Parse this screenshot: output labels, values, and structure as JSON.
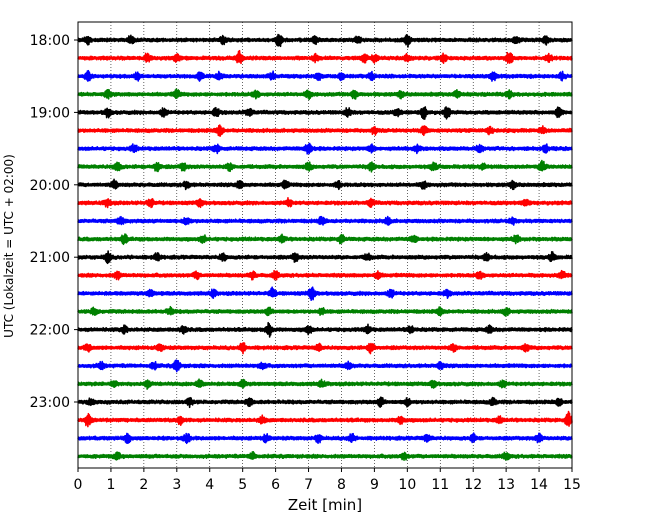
{
  "chart_data": {
    "type": "line",
    "title": "",
    "xlabel": "Zeit  [min]",
    "ylabel": "UTC (Lokalzeit = UTC + 02:00)",
    "xlim": [
      0,
      15
    ],
    "xticks": [
      "0",
      "1",
      "2",
      "3",
      "4",
      "5",
      "6",
      "7",
      "8",
      "9",
      "10",
      "11",
      "12",
      "13",
      "14",
      "15"
    ],
    "ytick_labels": [
      "18:00",
      "19:00",
      "20:00",
      "21:00",
      "22:00",
      "23:00"
    ],
    "grid": "vertical dotted",
    "trace_interval_min": 15,
    "color_cycle": [
      "#000000",
      "#ff0000",
      "#0000ff",
      "#008000"
    ],
    "traces": [
      {
        "start": "18:00",
        "events": [
          [
            0.3,
            1.4
          ],
          [
            1.6,
            1.3
          ],
          [
            4.4,
            1.2
          ],
          [
            6.1,
            2.6
          ],
          [
            7.2,
            1.3
          ],
          [
            8.5,
            1.2
          ],
          [
            10.0,
            2.2
          ],
          [
            13.3,
            1.3
          ],
          [
            14.2,
            1.6
          ]
        ]
      },
      {
        "start": "18:15",
        "events": [
          [
            2.1,
            1.4
          ],
          [
            3.0,
            1.2
          ],
          [
            4.9,
            2.4
          ],
          [
            7.2,
            1.2
          ],
          [
            8.7,
            1.5
          ],
          [
            9.0,
            1.3
          ],
          [
            10.0,
            1.2
          ],
          [
            11.1,
            1.3
          ],
          [
            13.1,
            2.4
          ],
          [
            14.3,
            1.3
          ]
        ]
      },
      {
        "start": "18:30",
        "events": [
          [
            0.3,
            1.6
          ],
          [
            1.8,
            1.2
          ],
          [
            3.7,
            1.3
          ],
          [
            4.3,
            1.2
          ],
          [
            5.9,
            1.3
          ],
          [
            7.3,
            1.3
          ],
          [
            8.0,
            1.2
          ],
          [
            8.9,
            1.3
          ],
          [
            12.6,
            1.9
          ],
          [
            14.7,
            1.2
          ]
        ]
      },
      {
        "start": "18:45",
        "events": [
          [
            0.9,
            1.3
          ],
          [
            3.0,
            1.5
          ],
          [
            5.4,
            1.2
          ],
          [
            7.0,
            1.4
          ],
          [
            8.4,
            1.6
          ],
          [
            9.8,
            1.2
          ],
          [
            11.5,
            1.2
          ],
          [
            13.1,
            1.3
          ]
        ]
      },
      {
        "start": "19:00",
        "events": [
          [
            0.9,
            1.6
          ],
          [
            2.6,
            1.4
          ],
          [
            4.2,
            1.5
          ],
          [
            5.2,
            1.5
          ],
          [
            8.2,
            1.5
          ],
          [
            9.7,
            1.3
          ],
          [
            10.5,
            2.2
          ],
          [
            11.2,
            2.0
          ],
          [
            14.6,
            2.0
          ]
        ]
      },
      {
        "start": "19:15",
        "events": [
          [
            4.3,
            2.0
          ],
          [
            9.0,
            1.2
          ],
          [
            10.5,
            1.6
          ],
          [
            12.5,
            1.3
          ],
          [
            14.1,
            1.3
          ]
        ]
      },
      {
        "start": "19:30",
        "events": [
          [
            1.7,
            1.3
          ],
          [
            4.2,
            1.4
          ],
          [
            7.0,
            2.2
          ],
          [
            8.9,
            1.3
          ],
          [
            10.3,
            1.3
          ],
          [
            12.2,
            1.4
          ],
          [
            14.2,
            1.2
          ]
        ]
      },
      {
        "start": "19:45",
        "events": [
          [
            1.2,
            1.6
          ],
          [
            2.4,
            1.6
          ],
          [
            3.2,
            1.3
          ],
          [
            4.6,
            1.3
          ],
          [
            7.0,
            1.4
          ],
          [
            8.9,
            1.5
          ],
          [
            10.8,
            1.3
          ],
          [
            12.3,
            1.2
          ],
          [
            14.1,
            1.8
          ]
        ]
      },
      {
        "start": "20:00",
        "events": [
          [
            1.1,
            1.4
          ],
          [
            3.3,
            1.3
          ],
          [
            4.9,
            1.2
          ],
          [
            6.3,
            1.3
          ],
          [
            7.9,
            1.2
          ],
          [
            10.5,
            1.3
          ],
          [
            13.2,
            1.4
          ]
        ]
      },
      {
        "start": "20:15",
        "events": [
          [
            0.9,
            1.3
          ],
          [
            2.2,
            1.6
          ],
          [
            3.7,
            1.2
          ],
          [
            6.4,
            1.4
          ],
          [
            8.9,
            1.3
          ],
          [
            13.6,
            1.2
          ]
        ]
      },
      {
        "start": "20:30",
        "events": [
          [
            1.3,
            1.5
          ],
          [
            3.3,
            1.4
          ],
          [
            7.4,
            1.3
          ],
          [
            9.4,
            1.2
          ],
          [
            13.2,
            1.2
          ]
        ]
      },
      {
        "start": "20:45",
        "events": [
          [
            1.4,
            1.6
          ],
          [
            3.8,
            1.3
          ],
          [
            6.2,
            1.3
          ],
          [
            8.0,
            1.5
          ],
          [
            10.2,
            1.2
          ],
          [
            13.3,
            1.3
          ]
        ]
      },
      {
        "start": "21:00",
        "events": [
          [
            0.9,
            2.0
          ],
          [
            2.4,
            1.3
          ],
          [
            4.4,
            1.3
          ],
          [
            6.6,
            1.5
          ],
          [
            8.8,
            1.2
          ],
          [
            12.4,
            1.2
          ],
          [
            14.4,
            1.4
          ]
        ]
      },
      {
        "start": "21:15",
        "events": [
          [
            1.2,
            1.3
          ],
          [
            3.6,
            1.2
          ],
          [
            5.3,
            1.3
          ],
          [
            6.0,
            1.4
          ],
          [
            9.1,
            1.2
          ],
          [
            12.2,
            1.2
          ],
          [
            14.7,
            1.3
          ]
        ]
      },
      {
        "start": "21:30",
        "events": [
          [
            2.2,
            1.2
          ],
          [
            4.1,
            1.2
          ],
          [
            5.9,
            1.7
          ],
          [
            7.1,
            2.3
          ],
          [
            9.5,
            1.4
          ],
          [
            11.2,
            1.2
          ]
        ]
      },
      {
        "start": "21:45",
        "events": [
          [
            0.5,
            1.4
          ],
          [
            2.8,
            1.3
          ],
          [
            5.8,
            1.3
          ],
          [
            7.4,
            1.2
          ],
          [
            11.0,
            1.3
          ],
          [
            13.0,
            1.3
          ]
        ]
      },
      {
        "start": "22:00",
        "events": [
          [
            1.4,
            1.3
          ],
          [
            3.2,
            1.3
          ],
          [
            5.8,
            2.4
          ],
          [
            7.0,
            1.4
          ],
          [
            8.8,
            1.3
          ],
          [
            10.1,
            1.2
          ],
          [
            12.5,
            1.2
          ]
        ]
      },
      {
        "start": "22:15",
        "events": [
          [
            0.3,
            1.3
          ],
          [
            2.5,
            1.2
          ],
          [
            5.0,
            1.6
          ],
          [
            7.3,
            1.2
          ],
          [
            8.9,
            1.9
          ],
          [
            11.4,
            1.2
          ],
          [
            13.6,
            1.2
          ]
        ]
      },
      {
        "start": "22:30",
        "events": [
          [
            0.7,
            1.3
          ],
          [
            2.3,
            1.2
          ],
          [
            3.0,
            2.1
          ],
          [
            5.6,
            1.2
          ],
          [
            8.2,
            1.3
          ],
          [
            11.0,
            1.2
          ]
        ]
      },
      {
        "start": "22:45",
        "events": [
          [
            1.1,
            1.2
          ],
          [
            2.1,
            1.3
          ],
          [
            3.7,
            1.6
          ],
          [
            5.0,
            1.4
          ],
          [
            7.4,
            1.2
          ],
          [
            10.8,
            1.3
          ],
          [
            12.9,
            1.2
          ]
        ]
      },
      {
        "start": "23:00",
        "events": [
          [
            0.4,
            1.3
          ],
          [
            3.4,
            1.4
          ],
          [
            5.2,
            1.3
          ],
          [
            9.2,
            1.6
          ],
          [
            10.0,
            1.3
          ],
          [
            12.6,
            1.2
          ],
          [
            14.6,
            1.3
          ]
        ]
      },
      {
        "start": "23:15",
        "events": [
          [
            0.3,
            2.3
          ],
          [
            3.1,
            1.5
          ],
          [
            5.6,
            1.3
          ],
          [
            9.8,
            1.4
          ],
          [
            12.8,
            1.2
          ],
          [
            14.9,
            3.0
          ]
        ]
      },
      {
        "start": "23:30",
        "events": [
          [
            1.5,
            1.8
          ],
          [
            3.3,
            1.6
          ],
          [
            5.7,
            1.3
          ],
          [
            7.3,
            1.4
          ],
          [
            8.3,
            1.6
          ],
          [
            10.6,
            1.3
          ],
          [
            12.0,
            1.3
          ],
          [
            14.0,
            1.6
          ]
        ]
      },
      {
        "start": "23:45",
        "events": [
          [
            1.2,
            1.2
          ],
          [
            5.3,
            1.3
          ],
          [
            9.9,
            1.2
          ],
          [
            13.0,
            1.3
          ]
        ]
      }
    ]
  }
}
